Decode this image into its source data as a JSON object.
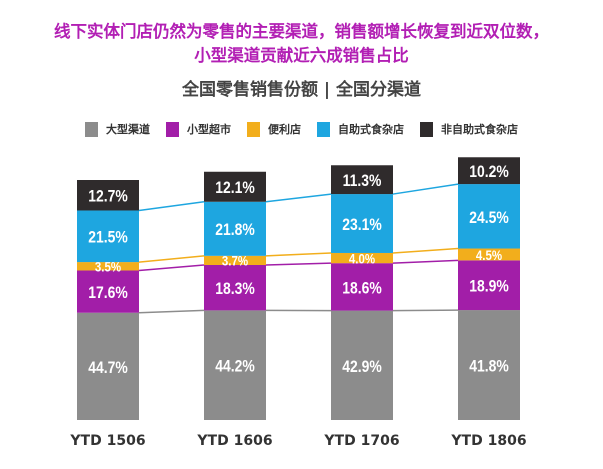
{
  "title_line1": "线下实体门店仍然为零售的主要渠道，销售额增长恢复到近双位数，",
  "title_line2": "小型渠道贡献近六成销售占比",
  "subtitle": "全国零售销售份额 | 全国分渠道",
  "chart_data": {
    "type": "bar",
    "stacked": true,
    "title": "全国零售销售份额 | 全国分渠道",
    "categories": [
      "YTD 1506",
      "YTD 1606",
      "YTD 1706",
      "YTD 1806"
    ],
    "series": [
      {
        "name": "大型渠道",
        "color": "#8c8c8c",
        "values": [
          44.7,
          44.2,
          42.9,
          41.8
        ],
        "labels": [
          "44.7%",
          "44.2%",
          "42.9%",
          "41.8%"
        ]
      },
      {
        "name": "小型超市",
        "color": "#a21ea8",
        "values": [
          17.6,
          18.3,
          18.6,
          18.9
        ],
        "labels": [
          "17.6%",
          "18.3%",
          "18.6%",
          "18.9%"
        ]
      },
      {
        "name": "便利店",
        "color": "#f2ae1c",
        "values": [
          3.5,
          3.7,
          4.0,
          4.5
        ],
        "labels": [
          "3.5%",
          "3.7%",
          "4.0%",
          "4.5%"
        ]
      },
      {
        "name": "自助式食杂店",
        "color": "#1ea6e0",
        "values": [
          21.5,
          21.8,
          23.1,
          24.5
        ],
        "labels": [
          "21.5%",
          "21.8%",
          "23.1%",
          "24.5%"
        ]
      },
      {
        "name": "非自助式食杂店",
        "color": "#2f2b2c",
        "values": [
          12.7,
          12.1,
          11.3,
          10.2
        ],
        "labels": [
          "12.7%",
          "12.1%",
          "11.3%",
          "10.2%"
        ]
      }
    ],
    "legend_position": "top",
    "ylim": [
      0,
      100
    ]
  }
}
